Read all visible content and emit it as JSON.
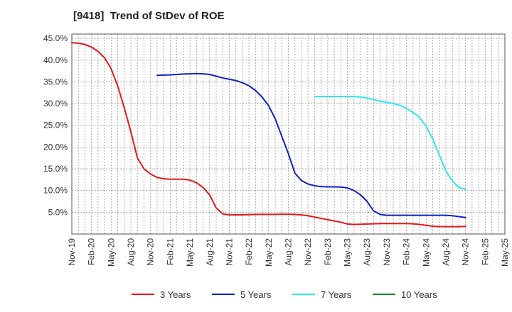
{
  "title": "[9418]  Trend of StDev of ROE",
  "chart_data": {
    "type": "line",
    "title": "[9418]  Trend of StDev of ROE",
    "xlabel": "",
    "ylabel": "",
    "x_ticks": [
      "Nov-19",
      "Feb-20",
      "May-20",
      "Aug-20",
      "Nov-20",
      "Feb-21",
      "May-21",
      "Aug-21",
      "Nov-21",
      "Feb-22",
      "May-22",
      "Aug-22",
      "Nov-22",
      "Feb-23",
      "May-23",
      "Aug-23",
      "Nov-23",
      "Feb-24",
      "May-24",
      "Aug-24",
      "Nov-24",
      "Feb-25",
      "May-25"
    ],
    "y_ticks": [
      "5.0%",
      "10.0%",
      "15.0%",
      "20.0%",
      "25.0%",
      "30.0%",
      "35.0%",
      "40.0%",
      "45.0%"
    ],
    "y_tick_values": [
      5,
      10,
      15,
      20,
      25,
      30,
      35,
      40,
      45
    ],
    "ylim": [
      0,
      46
    ],
    "grid": true,
    "legend_position": "bottom",
    "series": [
      {
        "name": "3 Years",
        "color": "#e8161a",
        "x": [
          "Nov-19",
          "Dec-19",
          "Jan-20",
          "Feb-20",
          "Mar-20",
          "Apr-20",
          "May-20",
          "Jun-20",
          "Jul-20",
          "Aug-20",
          "Sep-20",
          "Oct-20",
          "Nov-20",
          "Dec-20",
          "Jan-21",
          "Feb-21",
          "Mar-21",
          "Apr-21",
          "May-21",
          "Jun-21",
          "Jul-21",
          "Aug-21",
          "Sep-21",
          "Oct-21",
          "Nov-21",
          "Dec-21",
          "Jan-22",
          "Feb-22",
          "Mar-22",
          "Apr-22",
          "May-22",
          "Jun-22",
          "Jul-22",
          "Aug-22",
          "Sep-22",
          "Oct-22",
          "Nov-22",
          "Dec-22",
          "Jan-23",
          "Feb-23",
          "Mar-23",
          "Apr-23",
          "May-23",
          "Jun-23",
          "Jul-23",
          "Aug-23",
          "Sep-23",
          "Oct-23",
          "Nov-23",
          "Dec-23",
          "Jan-24",
          "Feb-24",
          "Mar-24",
          "Apr-24",
          "May-24",
          "Jun-24",
          "Jul-24",
          "Aug-24",
          "Sep-24",
          "Oct-24",
          "Nov-24"
        ],
        "values": [
          44.0,
          43.9,
          43.6,
          43.0,
          42.0,
          40.5,
          38.0,
          34.0,
          29.0,
          23.5,
          17.5,
          15.0,
          13.8,
          13.0,
          12.7,
          12.6,
          12.6,
          12.6,
          12.4,
          11.8,
          10.7,
          9.0,
          6.0,
          4.6,
          4.4,
          4.4,
          4.4,
          4.45,
          4.5,
          4.5,
          4.5,
          4.5,
          4.55,
          4.55,
          4.5,
          4.4,
          4.2,
          3.9,
          3.6,
          3.3,
          3.0,
          2.7,
          2.3,
          2.2,
          2.25,
          2.3,
          2.35,
          2.4,
          2.4,
          2.4,
          2.4,
          2.4,
          2.35,
          2.2,
          2.0,
          1.8,
          1.7,
          1.7,
          1.7,
          1.7,
          1.75
        ]
      },
      {
        "name": "5 Years",
        "color": "#1020c8",
        "x": [
          "Dec-20",
          "Jan-21",
          "Feb-21",
          "Mar-21",
          "Apr-21",
          "May-21",
          "Jun-21",
          "Jul-21",
          "Aug-21",
          "Sep-21",
          "Oct-21",
          "Nov-21",
          "Dec-21",
          "Jan-22",
          "Feb-22",
          "Mar-22",
          "Apr-22",
          "May-22",
          "Jun-22",
          "Jul-22",
          "Aug-22",
          "Sep-22",
          "Oct-22",
          "Nov-22",
          "Dec-22",
          "Jan-23",
          "Feb-23",
          "Mar-23",
          "Apr-23",
          "May-23",
          "Jun-23",
          "Jul-23",
          "Aug-23",
          "Sep-23",
          "Oct-23",
          "Nov-23",
          "Dec-23",
          "Jan-24",
          "Feb-24",
          "Mar-24",
          "Apr-24",
          "May-24",
          "Jun-24",
          "Jul-24",
          "Aug-24",
          "Sep-24",
          "Oct-24",
          "Nov-24"
        ],
        "values": [
          36.5,
          36.55,
          36.6,
          36.7,
          36.8,
          36.85,
          36.9,
          36.85,
          36.7,
          36.3,
          35.9,
          35.6,
          35.3,
          34.8,
          34.1,
          33.0,
          31.5,
          29.5,
          26.5,
          22.5,
          18.5,
          14.0,
          12.3,
          11.5,
          11.1,
          10.9,
          10.85,
          10.85,
          10.8,
          10.6,
          10.0,
          9.0,
          7.5,
          5.3,
          4.5,
          4.3,
          4.3,
          4.3,
          4.3,
          4.3,
          4.3,
          4.3,
          4.3,
          4.3,
          4.3,
          4.2,
          4.0,
          3.8
        ]
      },
      {
        "name": "7 Years",
        "color": "#2ce8f0",
        "x": [
          "Dec-22",
          "Jan-23",
          "Feb-23",
          "Mar-23",
          "Apr-23",
          "May-23",
          "Jun-23",
          "Jul-23",
          "Aug-23",
          "Sep-23",
          "Oct-23",
          "Nov-23",
          "Dec-23",
          "Jan-24",
          "Feb-24",
          "Mar-24",
          "Apr-24",
          "May-24",
          "Jun-24",
          "Jul-24",
          "Aug-24",
          "Sep-24",
          "Oct-24",
          "Nov-24"
        ],
        "values": [
          31.6,
          31.65,
          31.65,
          31.65,
          31.65,
          31.65,
          31.6,
          31.5,
          31.3,
          30.9,
          30.5,
          30.3,
          30.0,
          29.6,
          28.9,
          28.0,
          26.8,
          24.8,
          21.8,
          18.2,
          14.5,
          12.2,
          10.7,
          10.3
        ]
      },
      {
        "name": "10 Years",
        "color": "#1a8a1a",
        "x": [],
        "values": []
      }
    ]
  }
}
